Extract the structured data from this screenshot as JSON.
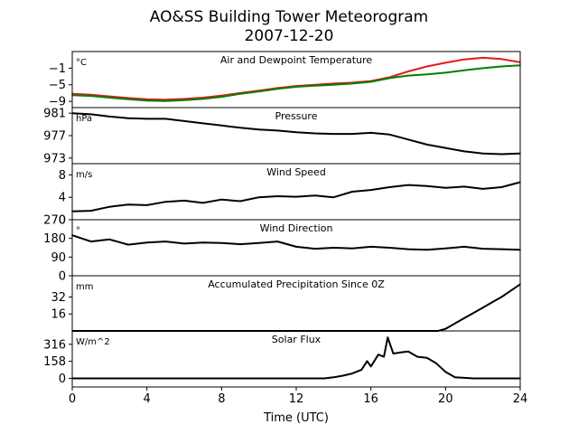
{
  "figure": {
    "title": "AO&SS Building Tower Meteorogram",
    "subtitle": "2007-12-20",
    "xlabel": "Time (UTC)",
    "x_ticks": [
      "0",
      "4",
      "8",
      "12",
      "16",
      "20",
      "24"
    ]
  },
  "chart_data": [
    {
      "type": "line",
      "title": "Air and Dewpoint Temperature",
      "unit_label": "°C",
      "y_ticks": [
        -9,
        -5,
        -1
      ],
      "ylim": [
        -10.5,
        3.0
      ],
      "series": [
        {
          "color": "#e31a1c",
          "x": [
            0,
            1,
            2,
            3,
            4,
            5,
            6,
            7,
            8,
            9,
            10,
            11,
            12,
            13,
            14,
            15,
            16,
            17,
            18,
            19,
            20,
            21,
            22,
            23,
            24
          ],
          "y": [
            -7.2,
            -7.4,
            -7.8,
            -8.2,
            -8.5,
            -8.6,
            -8.4,
            -8.1,
            -7.6,
            -7.0,
            -6.4,
            -5.8,
            -5.3,
            -5.0,
            -4.7,
            -4.5,
            -4.1,
            -3.2,
            -1.8,
            -0.6,
            0.3,
            1.1,
            1.5,
            1.2,
            0.4
          ]
        },
        {
          "color": "#008000",
          "x": [
            0,
            1,
            2,
            3,
            4,
            5,
            6,
            7,
            8,
            9,
            10,
            11,
            12,
            13,
            14,
            15,
            16,
            17,
            18,
            19,
            20,
            21,
            22,
            23,
            24
          ],
          "y": [
            -7.5,
            -7.7,
            -8.1,
            -8.5,
            -8.8,
            -8.9,
            -8.7,
            -8.4,
            -7.9,
            -7.2,
            -6.6,
            -6.0,
            -5.5,
            -5.2,
            -5.0,
            -4.7,
            -4.3,
            -3.4,
            -2.8,
            -2.5,
            -2.1,
            -1.5,
            -1.0,
            -0.6,
            -0.3
          ]
        }
      ]
    },
    {
      "type": "line",
      "title": "Pressure",
      "unit_label": "hPa",
      "y_ticks": [
        973,
        977,
        981
      ],
      "ylim": [
        972.0,
        982.0
      ],
      "series": [
        {
          "color": "#000000",
          "x": [
            0,
            1,
            2,
            3,
            4,
            5,
            6,
            7,
            8,
            9,
            10,
            11,
            12,
            13,
            14,
            15,
            16,
            17,
            18,
            19,
            20,
            21,
            22,
            23,
            24
          ],
          "y": [
            981.0,
            980.8,
            980.4,
            980.1,
            980.0,
            980.0,
            979.6,
            979.2,
            978.8,
            978.4,
            978.1,
            977.9,
            977.6,
            977.4,
            977.3,
            977.3,
            977.5,
            977.2,
            976.3,
            975.4,
            974.8,
            974.2,
            973.8,
            973.7,
            973.8
          ]
        }
      ]
    },
    {
      "type": "line",
      "title": "Wind Speed",
      "unit_label": "m/s",
      "y_ticks": [
        0,
        4,
        8
      ],
      "ylim": [
        0,
        10
      ],
      "series": [
        {
          "color": "#000000",
          "x": [
            0,
            1,
            2,
            3,
            4,
            5,
            6,
            7,
            8,
            9,
            10,
            11,
            12,
            13,
            14,
            15,
            16,
            17,
            18,
            19,
            20,
            21,
            22,
            23,
            24
          ],
          "y": [
            1.5,
            1.6,
            2.3,
            2.7,
            2.6,
            3.2,
            3.4,
            3.0,
            3.6,
            3.3,
            4.0,
            4.2,
            4.1,
            4.3,
            4.0,
            5.0,
            5.3,
            5.8,
            6.2,
            6.0,
            5.7,
            5.9,
            5.5,
            5.8,
            6.7
          ]
        }
      ]
    },
    {
      "type": "line",
      "title": "Wind Direction",
      "unit_label": "°",
      "y_ticks": [
        0,
        90,
        180,
        270
      ],
      "ylim": [
        0,
        270
      ],
      "series": [
        {
          "color": "#000000",
          "x": [
            0,
            1,
            2,
            3,
            4,
            5,
            6,
            7,
            8,
            9,
            10,
            11,
            12,
            13,
            14,
            15,
            16,
            17,
            18,
            19,
            20,
            21,
            22,
            23,
            24
          ],
          "y": [
            195,
            165,
            175,
            150,
            160,
            165,
            155,
            160,
            158,
            152,
            158,
            165,
            140,
            130,
            135,
            132,
            140,
            135,
            128,
            125,
            132,
            140,
            130,
            128,
            125
          ]
        }
      ]
    },
    {
      "type": "line",
      "title": "Accumulated Precipitation Since 0Z",
      "unit_label": "mm",
      "y_ticks": [
        16,
        32
      ],
      "ylim": [
        0,
        52
      ],
      "series": [
        {
          "color": "#000000",
          "x": [
            0,
            19.6,
            20.0,
            20.5,
            21.0,
            21.5,
            22.0,
            22.5,
            23.0,
            23.5,
            24.0
          ],
          "y": [
            0,
            0,
            2,
            7,
            12,
            17,
            22,
            27,
            32,
            38,
            44
          ]
        }
      ]
    },
    {
      "type": "line",
      "title": "Solar Flux",
      "unit_label": "W/m^2",
      "y_ticks": [
        0,
        158,
        316
      ],
      "ylim": [
        -80,
        440
      ],
      "series": [
        {
          "color": "#000000",
          "x": [
            0,
            13.5,
            14.0,
            14.5,
            15.0,
            15.5,
            15.8,
            16.0,
            16.4,
            16.7,
            16.9,
            17.2,
            17.6,
            18.0,
            18.5,
            19.0,
            19.5,
            20.0,
            20.5,
            21.5,
            22.5,
            24.0
          ],
          "y": [
            0,
            0,
            10,
            25,
            45,
            80,
            160,
            110,
            220,
            200,
            380,
            230,
            240,
            250,
            200,
            190,
            140,
            60,
            10,
            0,
            0,
            0
          ]
        }
      ]
    }
  ]
}
